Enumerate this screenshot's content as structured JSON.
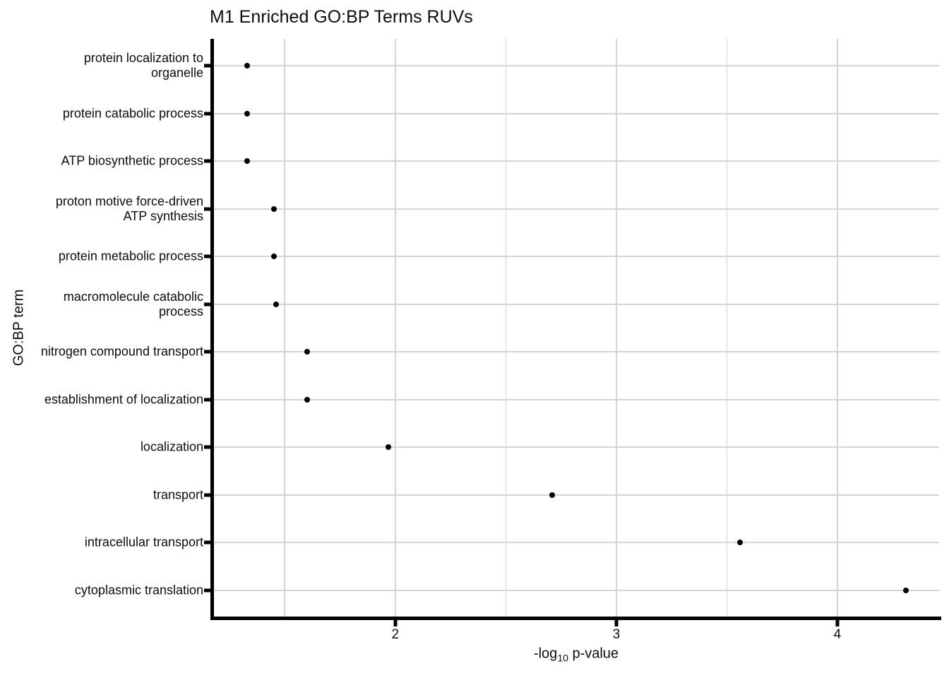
{
  "title": "M1 Enriched GO:BP Terms RUVs",
  "x_axis_label": {
    "prefix": "-log",
    "sub": "10",
    "suffix": " p-value"
  },
  "y_axis_label": "GO:BP term",
  "chart_data": {
    "type": "scatter",
    "subtype": "horizontal-dot-plot",
    "title": "M1 Enriched GO:BP Terms RUVs",
    "xlabel": "-log10 p-value",
    "ylabel": "GO:BP term",
    "xlim": [
      1.18,
      4.46
    ],
    "x_ticks": [
      2,
      3,
      4
    ],
    "x_tick_labels": [
      "2",
      "3",
      "4"
    ],
    "x_minor_gridlines": [
      1.5,
      2.5,
      3.5
    ],
    "grid": true,
    "legend": "none",
    "point_color": "#000000",
    "gridline_color": "#d4d4d4",
    "axis_color": "#000000",
    "background_color": "#ffffff",
    "categories": [
      "protein localization to organelle",
      "protein catabolic process",
      "ATP biosynthetic process",
      "proton motive force-driven ATP synthesis",
      "protein metabolic process",
      "macromolecule catabolic process",
      "nitrogen compound transport",
      "establishment of localization",
      "localization",
      "transport",
      "intracellular transport",
      "cytoplasmic translation"
    ],
    "category_display_lines": [
      [
        "protein localization to",
        "organelle"
      ],
      [
        "protein catabolic process"
      ],
      [
        "ATP biosynthetic process"
      ],
      [
        "proton motive force-driven",
        "ATP synthesis"
      ],
      [
        "protein metabolic process"
      ],
      [
        "macromolecule catabolic",
        "process"
      ],
      [
        "nitrogen compound transport"
      ],
      [
        "establishment of localization"
      ],
      [
        "localization"
      ],
      [
        "transport"
      ],
      [
        "intracellular transport"
      ],
      [
        "cytoplasmic translation"
      ]
    ],
    "values": [
      1.33,
      1.33,
      1.33,
      1.45,
      1.45,
      1.46,
      1.6,
      1.6,
      1.97,
      2.71,
      3.56,
      4.31
    ]
  }
}
